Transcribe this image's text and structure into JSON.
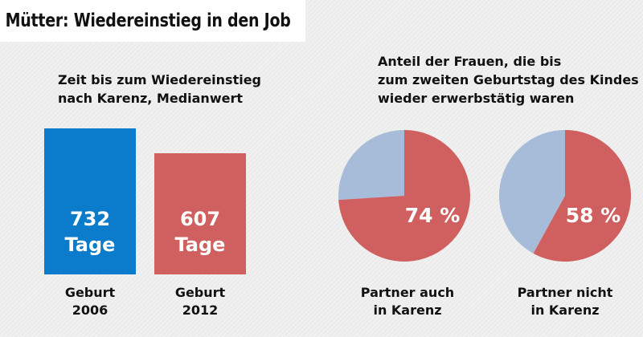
{
  "title": "Mütter: Wiedereinstieg in den Job",
  "colors": {
    "bar_2006": "#0a7ccb",
    "bar_2012": "#d06060",
    "pie_main": "#d06060",
    "pie_rest": "#a7bcd8"
  },
  "chart_data": [
    {
      "type": "bar",
      "title": "Zeit bis zum Wiedereinstieg nach Karenz, Medianwert",
      "title_lines": [
        "Zeit bis zum Wiedereinstieg",
        "nach Karenz, Medianwert"
      ],
      "categories": [
        "Geburt 2006",
        "Geburt 2012"
      ],
      "category_lines": [
        [
          "Geburt",
          "2006"
        ],
        [
          "Geburt",
          "2012"
        ]
      ],
      "values": [
        732,
        607
      ],
      "unit": "Tage",
      "value_labels": [
        "732",
        "607"
      ]
    },
    {
      "type": "pie",
      "title": "Anteil der Frauen, die bis zum zweiten Geburtstag des Kindes wieder erwerbstätig waren",
      "title_lines": [
        "Anteil der Frauen, die bis",
        "zum zweiten Geburtstag des Kindes",
        "wieder erwerbstätig waren"
      ],
      "pies": [
        {
          "label": "Partner auch in Karenz",
          "label_lines": [
            "Partner auch",
            "in Karenz"
          ],
          "percent": 74,
          "value_label": "74 %"
        },
        {
          "label": "Partner nicht in Karenz",
          "label_lines": [
            "Partner nicht",
            "in Karenz"
          ],
          "percent": 58,
          "value_label": "58 %"
        }
      ]
    }
  ]
}
